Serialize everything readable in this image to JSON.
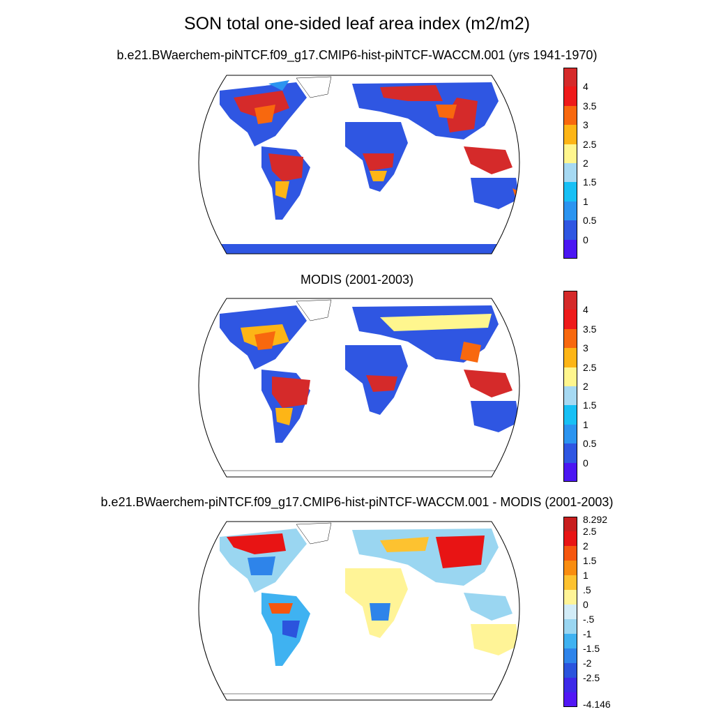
{
  "figure": {
    "title": "SON total one-sided leaf area index (m2/m2)",
    "panels": [
      {
        "id": "model",
        "title": "b.e21.BWaerchem-piNTCF.f09_g17.CMIP6-hist-piNTCF-WACCM.001 (yrs 1941-1970)",
        "colorbar": {
          "colors": [
            "#d52a2a",
            "#ee1a1a",
            "#f8680e",
            "#fdb516",
            "#fff68e",
            "#a6d9f2",
            "#17c0f5",
            "#2b94f0",
            "#2f56e2",
            "#4b16f2"
          ],
          "labels": [
            "4",
            "3.5",
            "3",
            "2.5",
            "2",
            "1.5",
            "1",
            "0.5",
            "0"
          ]
        }
      },
      {
        "id": "modis",
        "title": "MODIS (2001-2003)",
        "colorbar": {
          "colors": [
            "#d52a2a",
            "#ee1a1a",
            "#f8680e",
            "#fdb516",
            "#fff68e",
            "#a6d9f2",
            "#17c0f5",
            "#2b94f0",
            "#2f56e2",
            "#4b16f2"
          ],
          "labels": [
            "4",
            "3.5",
            "3",
            "2.5",
            "2",
            "1.5",
            "1",
            "0.5",
            "0"
          ]
        }
      },
      {
        "id": "difference",
        "title": "b.e21.BWaerchem-piNTCF.f09_g17.CMIP6-hist-piNTCF-WACCM.001 - MODIS (2001-2003)",
        "colorbar": {
          "colors": [
            "#c81e1e",
            "#e81414",
            "#f5560e",
            "#f98d10",
            "#fdc230",
            "#fff497",
            "#d2ecf7",
            "#9ad6f1",
            "#3fb2f1",
            "#2e84ea",
            "#2b54dd",
            "#3d2ae8",
            "#5217f5"
          ],
          "labels": [
            "8.292",
            "2.5",
            "2",
            "1.5",
            "1",
            ".5",
            "0",
            "-.5",
            "-1",
            "-1.5",
            "-2",
            "-2.5",
            "-4.146"
          ]
        }
      }
    ]
  }
}
